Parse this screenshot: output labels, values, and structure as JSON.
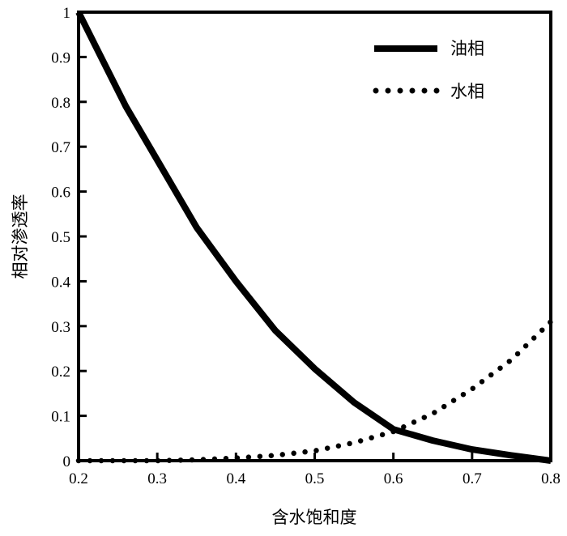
{
  "chart_data": {
    "type": "line",
    "xlabel": "含水饱和度",
    "ylabel": "相对渗透率",
    "xlim": [
      0.2,
      0.8
    ],
    "ylim": [
      0,
      1
    ],
    "xticks": [
      0.2,
      0.3,
      0.4,
      0.5,
      0.6,
      0.7,
      0.8
    ],
    "yticks": [
      0,
      0.1,
      0.2,
      0.3,
      0.4,
      0.5,
      0.6,
      0.7,
      0.8,
      0.9,
      1
    ],
    "xtick_labels": [
      "0.2",
      "0.3",
      "0.4",
      "0.5",
      "0.6",
      "0.7",
      "0.8"
    ],
    "ytick_labels": [
      "0",
      "0.1",
      "0.2",
      "0.3",
      "0.4",
      "0.5",
      "0.6",
      "0.7",
      "0.8",
      "0.9",
      "1"
    ],
    "grid": false,
    "legend_position": "top-right",
    "series": [
      {
        "name": "油相",
        "style": "solid",
        "color": "#000000",
        "x": [
          0.2,
          0.22,
          0.26,
          0.3,
          0.35,
          0.4,
          0.45,
          0.5,
          0.55,
          0.6,
          0.65,
          0.7,
          0.75,
          0.8
        ],
        "y": [
          1.0,
          0.93,
          0.79,
          0.67,
          0.52,
          0.4,
          0.29,
          0.205,
          0.13,
          0.07,
          0.045,
          0.025,
          0.012,
          0.0
        ]
      },
      {
        "name": "水相",
        "style": "dotted",
        "color": "#000000",
        "x": [
          0.2,
          0.3,
          0.35,
          0.4,
          0.45,
          0.5,
          0.55,
          0.6,
          0.65,
          0.7,
          0.75,
          0.8
        ],
        "y": [
          0.0,
          0.0,
          0.002,
          0.006,
          0.012,
          0.022,
          0.04,
          0.065,
          0.105,
          0.16,
          0.225,
          0.31
        ]
      }
    ]
  }
}
